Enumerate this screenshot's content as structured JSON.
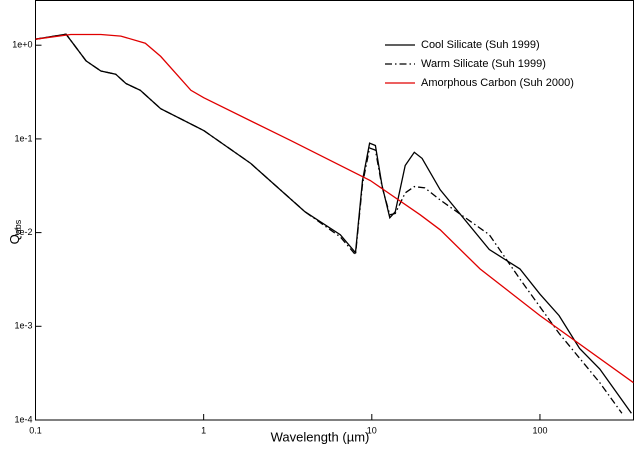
{
  "chart_data": {
    "type": "line",
    "xlabel": "Wavelength (µm)",
    "ylabel": {
      "main": "Q",
      "sub": "abs"
    },
    "xlog": true,
    "ylog": true,
    "xlim": [
      0.1,
      360
    ],
    "ylim": [
      0.0001,
      3
    ],
    "xticks": [
      0.1,
      1,
      10,
      100
    ],
    "yticks": [
      {
        "value": 1,
        "label": "1e+0"
      },
      {
        "value": 0.1,
        "label": "1e-1"
      },
      {
        "value": 0.01,
        "label": "1e-2"
      },
      {
        "value": 0.001,
        "label": "1e-3"
      },
      {
        "value": 0.0001,
        "label": "1e-4"
      }
    ],
    "legend": "upper right",
    "series": [
      {
        "name": "Cool Silicate (Suh 1999)",
        "color": "#000000",
        "dash": "solid",
        "x": [
          0.1,
          0.152,
          0.2,
          0.245,
          0.3,
          0.345,
          0.42,
          0.555,
          1,
          1.9,
          4.0,
          6.5,
          8,
          8.8,
          9.7,
          10.5,
          11.5,
          12.8,
          13.8,
          15.8,
          17.9,
          19.9,
          25.5,
          50,
          76,
          100,
          130,
          172,
          227,
          350
        ],
        "values": [
          1.16,
          1.31,
          0.68,
          0.53,
          0.49,
          0.39,
          0.33,
          0.21,
          0.123,
          0.055,
          0.0167,
          0.0095,
          0.0061,
          0.036,
          0.09,
          0.085,
          0.032,
          0.0144,
          0.0167,
          0.052,
          0.072,
          0.062,
          0.0286,
          0.0066,
          0.0041,
          0.0022,
          0.0013,
          0.00058,
          0.00035,
          0.000118
        ]
      },
      {
        "name": "Warm Silicate (Suh 1999)",
        "color": "#000000",
        "dash": "dashdot",
        "x": [
          0.1,
          0.152,
          0.2,
          0.245,
          0.3,
          0.345,
          0.42,
          0.555,
          1,
          1.9,
          4.0,
          6.5,
          8,
          8.8,
          9.7,
          10.5,
          11.5,
          12.8,
          13.8,
          15.8,
          17.9,
          20.7,
          25.5,
          50,
          76,
          130,
          227,
          307
        ],
        "values": [
          1.16,
          1.31,
          0.68,
          0.53,
          0.49,
          0.39,
          0.33,
          0.21,
          0.123,
          0.055,
          0.0167,
          0.009,
          0.0058,
          0.033,
          0.08,
          0.076,
          0.031,
          0.0155,
          0.016,
          0.0265,
          0.031,
          0.03,
          0.0223,
          0.0095,
          0.0032,
          0.00084,
          0.00025,
          0.000118
        ]
      },
      {
        "name": "Amorphous Carbon (Suh 2000)",
        "color": "#e00000",
        "dash": "solid",
        "x": [
          0.1,
          0.162,
          0.245,
          0.322,
          0.45,
          0.555,
          0.84,
          1,
          3.3,
          9.8,
          19.4,
          25.5,
          44,
          100,
          360
        ],
        "values": [
          1.16,
          1.3,
          1.3,
          1.25,
          1.05,
          0.76,
          0.33,
          0.275,
          0.096,
          0.036,
          0.0155,
          0.0107,
          0.0041,
          0.0013,
          0.00025
        ]
      }
    ]
  }
}
